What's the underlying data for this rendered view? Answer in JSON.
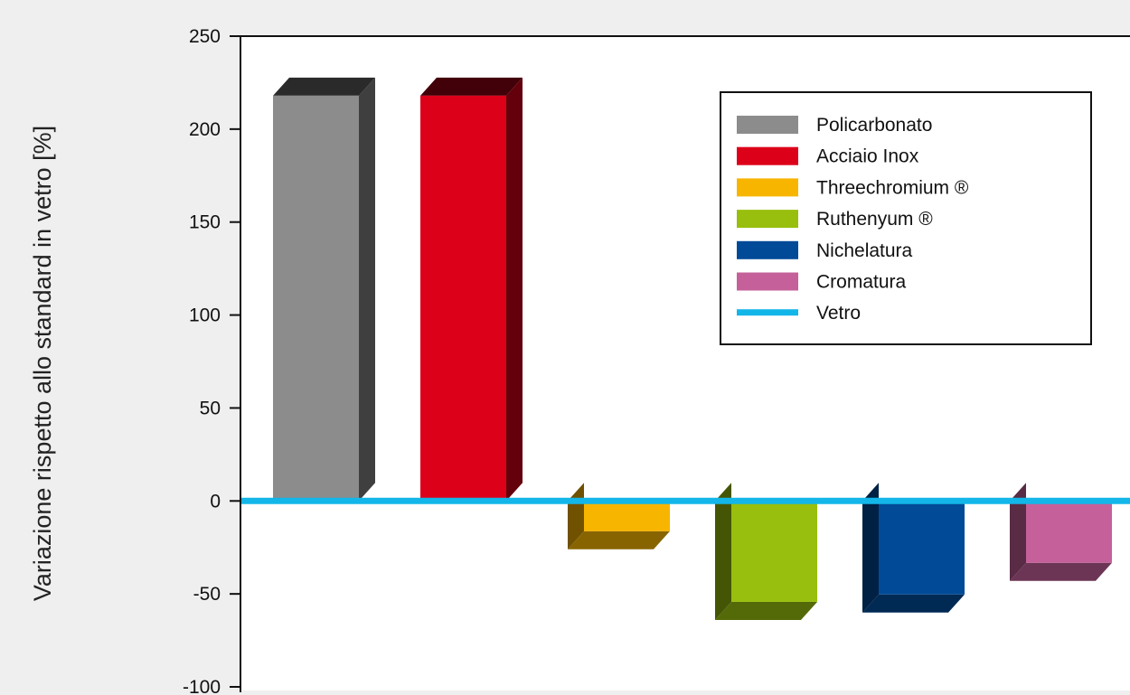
{
  "chart_data": {
    "type": "bar",
    "title": "",
    "xlabel": "",
    "ylabel": "Variazione rispetto allo standard in vetro [%]",
    "ylim": [
      -100,
      250
    ],
    "yticks": [
      250,
      200,
      150,
      100,
      50,
      0,
      -50,
      -100
    ],
    "grid": false,
    "legend_position": "top-right",
    "series": [
      {
        "name": "Policarbonato",
        "value": 218,
        "color": "#8c8c8c"
      },
      {
        "name": "Acciaio Inox",
        "value": 218,
        "color": "#dd0019"
      },
      {
        "name": "Threechromium ®",
        "value": -26,
        "color": "#f7b500"
      },
      {
        "name": "Ruthenyum ®",
        "value": -64,
        "color": "#98bf0e"
      },
      {
        "name": "Nichelatura",
        "value": -60,
        "color": "#004a98"
      },
      {
        "name": "Cromatura",
        "value": -43,
        "color": "#c5609a"
      }
    ],
    "baseline": {
      "name": "Vetro",
      "value": 0,
      "color": "#13b6e8"
    }
  }
}
